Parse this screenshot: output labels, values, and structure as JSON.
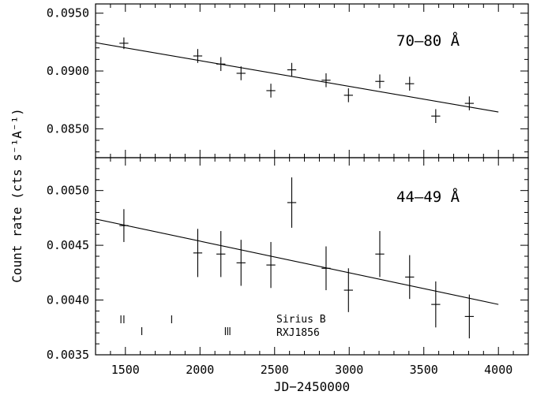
{
  "chart_data": {
    "type": "scatter",
    "xlabel": "JD−2450000",
    "ylabel": "Count rate (cts s⁻¹A⁻¹)",
    "xlim": [
      1300,
      4200
    ],
    "xticks": [
      "1500",
      "2000",
      "2500",
      "3000",
      "3500",
      "4000"
    ],
    "xtick_values": [
      1500,
      2000,
      2500,
      3000,
      3500,
      4000
    ],
    "panels": [
      {
        "label": "70–80 Å",
        "ylim": [
          0.0825,
          0.0958
        ],
        "yticks": [
          "0.0850",
          "0.0900",
          "0.0950"
        ],
        "ytick_values": [
          0.085,
          0.09,
          0.095
        ],
        "points": [
          {
            "x": 1490,
            "y": 0.0924,
            "xerr": 30,
            "yerr": 0.0005
          },
          {
            "x": 1985,
            "y": 0.0913,
            "xerr": 30,
            "yerr": 0.0006
          },
          {
            "x": 2140,
            "y": 0.0906,
            "xerr": 30,
            "yerr": 0.0006
          },
          {
            "x": 2275,
            "y": 0.0898,
            "xerr": 30,
            "yerr": 0.0006
          },
          {
            "x": 2475,
            "y": 0.0883,
            "xerr": 30,
            "yerr": 0.0006
          },
          {
            "x": 2615,
            "y": 0.0901,
            "xerr": 30,
            "yerr": 0.0006
          },
          {
            "x": 2845,
            "y": 0.0892,
            "xerr": 30,
            "yerr": 0.0006
          },
          {
            "x": 2995,
            "y": 0.0879,
            "xerr": 30,
            "yerr": 0.0006
          },
          {
            "x": 3205,
            "y": 0.0891,
            "xerr": 30,
            "yerr": 0.0006
          },
          {
            "x": 3405,
            "y": 0.0889,
            "xerr": 30,
            "yerr": 0.0006
          },
          {
            "x": 3580,
            "y": 0.0861,
            "xerr": 30,
            "yerr": 0.0006
          },
          {
            "x": 3805,
            "y": 0.0872,
            "xerr": 30,
            "yerr": 0.0006
          }
        ],
        "fit": {
          "x": [
            1300,
            4000
          ],
          "y": [
            0.09245,
            0.08645
          ]
        }
      },
      {
        "label": "44–49 Å",
        "ylim": [
          0.0035,
          0.0053
        ],
        "yticks": [
          "0.0035",
          "0.0040",
          "0.0045",
          "0.0050"
        ],
        "ytick_values": [
          0.0035,
          0.004,
          0.0045,
          0.005
        ],
        "points": [
          {
            "x": 1490,
            "y": 0.00468,
            "xerr": 30,
            "yerr": 0.00015
          },
          {
            "x": 1985,
            "y": 0.00443,
            "xerr": 30,
            "yerr": 0.00022
          },
          {
            "x": 2140,
            "y": 0.00442,
            "xerr": 30,
            "yerr": 0.00021
          },
          {
            "x": 2275,
            "y": 0.00434,
            "xerr": 30,
            "yerr": 0.00021
          },
          {
            "x": 2475,
            "y": 0.00432,
            "xerr": 30,
            "yerr": 0.00021
          },
          {
            "x": 2615,
            "y": 0.00489,
            "xerr": 30,
            "yerr": 0.00023
          },
          {
            "x": 2845,
            "y": 0.00429,
            "xerr": 30,
            "yerr": 0.0002
          },
          {
            "x": 2995,
            "y": 0.00409,
            "xerr": 30,
            "yerr": 0.0002
          },
          {
            "x": 3205,
            "y": 0.00442,
            "xerr": 30,
            "yerr": 0.00021
          },
          {
            "x": 3405,
            "y": 0.00421,
            "xerr": 30,
            "yerr": 0.0002
          },
          {
            "x": 3580,
            "y": 0.00396,
            "xerr": 30,
            "yerr": 0.00021
          },
          {
            "x": 3805,
            "y": 0.00385,
            "xerr": 30,
            "yerr": 0.0002
          }
        ],
        "fit": {
          "x": [
            1300,
            4000
          ],
          "y": [
            0.00474,
            0.00396
          ]
        },
        "observation_marks": [
          {
            "name": "Sirius B",
            "x": [
              1470,
              1490,
              1810
            ]
          },
          {
            "name": "RXJ1856",
            "x": [
              1610,
              2170,
              2185,
              2200
            ]
          }
        ]
      }
    ]
  }
}
